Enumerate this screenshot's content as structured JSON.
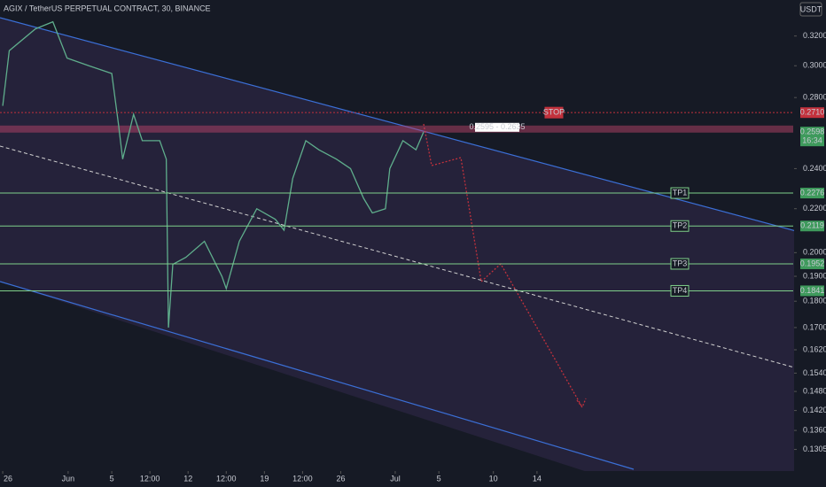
{
  "chart_data": {
    "type": "line",
    "title": "AGIX / TetherUS PERPETUAL CONTRACT, 30, BINANCE",
    "currency": "USDT",
    "log": true,
    "color": "#5fae8c",
    "x": [
      0,
      0.6,
      3,
      4.6,
      5.9,
      7.9,
      10,
      10.6,
      11,
      12,
      12.8,
      14.4,
      15,
      15.2,
      15.6,
      16.8,
      18.5,
      20.1,
      20.5,
      21.7,
      23.3,
      25,
      25.8,
      26.6,
      27.8,
      29,
      30.6,
      31.9,
      33.1,
      33.9,
      35.1,
      35.5,
      36.7,
      37.9,
      38.6
    ],
    "values": [
      0.275,
      0.31,
      0.325,
      0.33,
      0.305,
      0.3,
      0.295,
      0.265,
      0.245,
      0.27,
      0.255,
      0.255,
      0.245,
      0.17,
      0.195,
      0.198,
      0.205,
      0.19,
      0.185,
      0.205,
      0.22,
      0.215,
      0.21,
      0.235,
      0.255,
      0.25,
      0.245,
      0.24,
      0.225,
      0.218,
      0.22,
      0.24,
      0.255,
      0.25,
      0.2598
    ],
    "xlim": [
      -0.25,
      72.5
    ],
    "xticks": [
      {
        "value": 0,
        "label": "26"
      },
      {
        "value": 6,
        "label": "Jun"
      },
      {
        "value": 10,
        "label": "5"
      },
      {
        "value": 13.5,
        "label": "12:00"
      },
      {
        "value": 17,
        "label": "12"
      },
      {
        "value": 20.5,
        "label": "12:00"
      },
      {
        "value": 24,
        "label": "19"
      },
      {
        "value": 27.5,
        "label": "12:00"
      },
      {
        "value": 31,
        "label": "26"
      },
      {
        "value": 36,
        "label": "Jul"
      },
      {
        "value": 40,
        "label": "5"
      },
      {
        "value": 45,
        "label": "10"
      },
      {
        "value": 49,
        "label": "14"
      }
    ],
    "ylim": [
      0.125,
      0.346
    ],
    "yticks": [
      {
        "value": 0.32,
        "label": "0.3200"
      },
      {
        "value": 0.3,
        "label": "0.3000"
      },
      {
        "value": 0.28,
        "label": "0.2800"
      },
      {
        "value": 0.24,
        "label": "0.2400"
      },
      {
        "value": 0.22,
        "label": "0.2200"
      },
      {
        "value": 0.2,
        "label": "0.2000"
      },
      {
        "value": 0.19,
        "label": "0.1900"
      },
      {
        "value": 0.18,
        "label": "0.1800"
      },
      {
        "value": 0.17,
        "label": "0.1700"
      },
      {
        "value": 0.162,
        "label": "0.1620"
      },
      {
        "value": 0.154,
        "label": "0.1540"
      },
      {
        "value": 0.148,
        "label": "0.1480"
      },
      {
        "value": 0.142,
        "label": "0.1420"
      },
      {
        "value": 0.136,
        "label": "0.1360"
      },
      {
        "value": 0.1305,
        "label": "0.1305"
      }
    ],
    "levels": [
      {
        "name": "STOP",
        "value": 0.271,
        "label": "0.2710",
        "color": "#c2313c"
      },
      {
        "name": "TP1",
        "value": 0.2276,
        "color": "#7fd08a"
      },
      {
        "name": "TP2",
        "value": 0.2119,
        "color": "#7fd08a"
      },
      {
        "name": "TP3",
        "value": 0.1952,
        "color": "#7fd08a"
      },
      {
        "name": "TP4",
        "value": 0.1841,
        "color": "#7fd08a"
      }
    ],
    "zone": [
      0.2595,
      0.2635
    ],
    "zone_label": "0.2595 - 0.2635",
    "last": 0.2598,
    "countdown": "16:34"
  }
}
